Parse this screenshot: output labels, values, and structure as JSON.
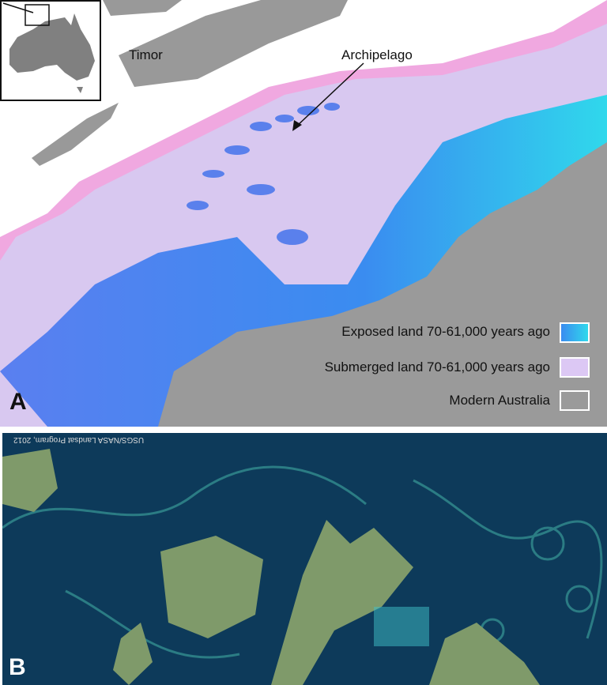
{
  "panel_a": {
    "letter": "A",
    "labels": {
      "timor": "Timor",
      "archipelago": "Archipelago"
    },
    "legend": [
      {
        "label": "Exposed land 70-61,000 years ago",
        "color": "#3ab0f0"
      },
      {
        "label": "Submerged land 70-61,000 years ago",
        "color": "#dcc8f4"
      },
      {
        "label": "Modern Australia",
        "color": "#9a9a9a"
      }
    ],
    "colors": {
      "land": "#9a9a9a",
      "exposed": "#3a8cf0",
      "exposed_shallow": "#30d8ec",
      "submerged": "#d8c8f0",
      "deep_edge": "#f0a8e0"
    }
  },
  "panel_b": {
    "letter": "B",
    "credit": "USGS/NASA Landsat Program, 2012",
    "colors": {
      "sea": "#0d3a5a",
      "bloom": "#3fa8a0",
      "islands": "#7f9a6a"
    }
  }
}
